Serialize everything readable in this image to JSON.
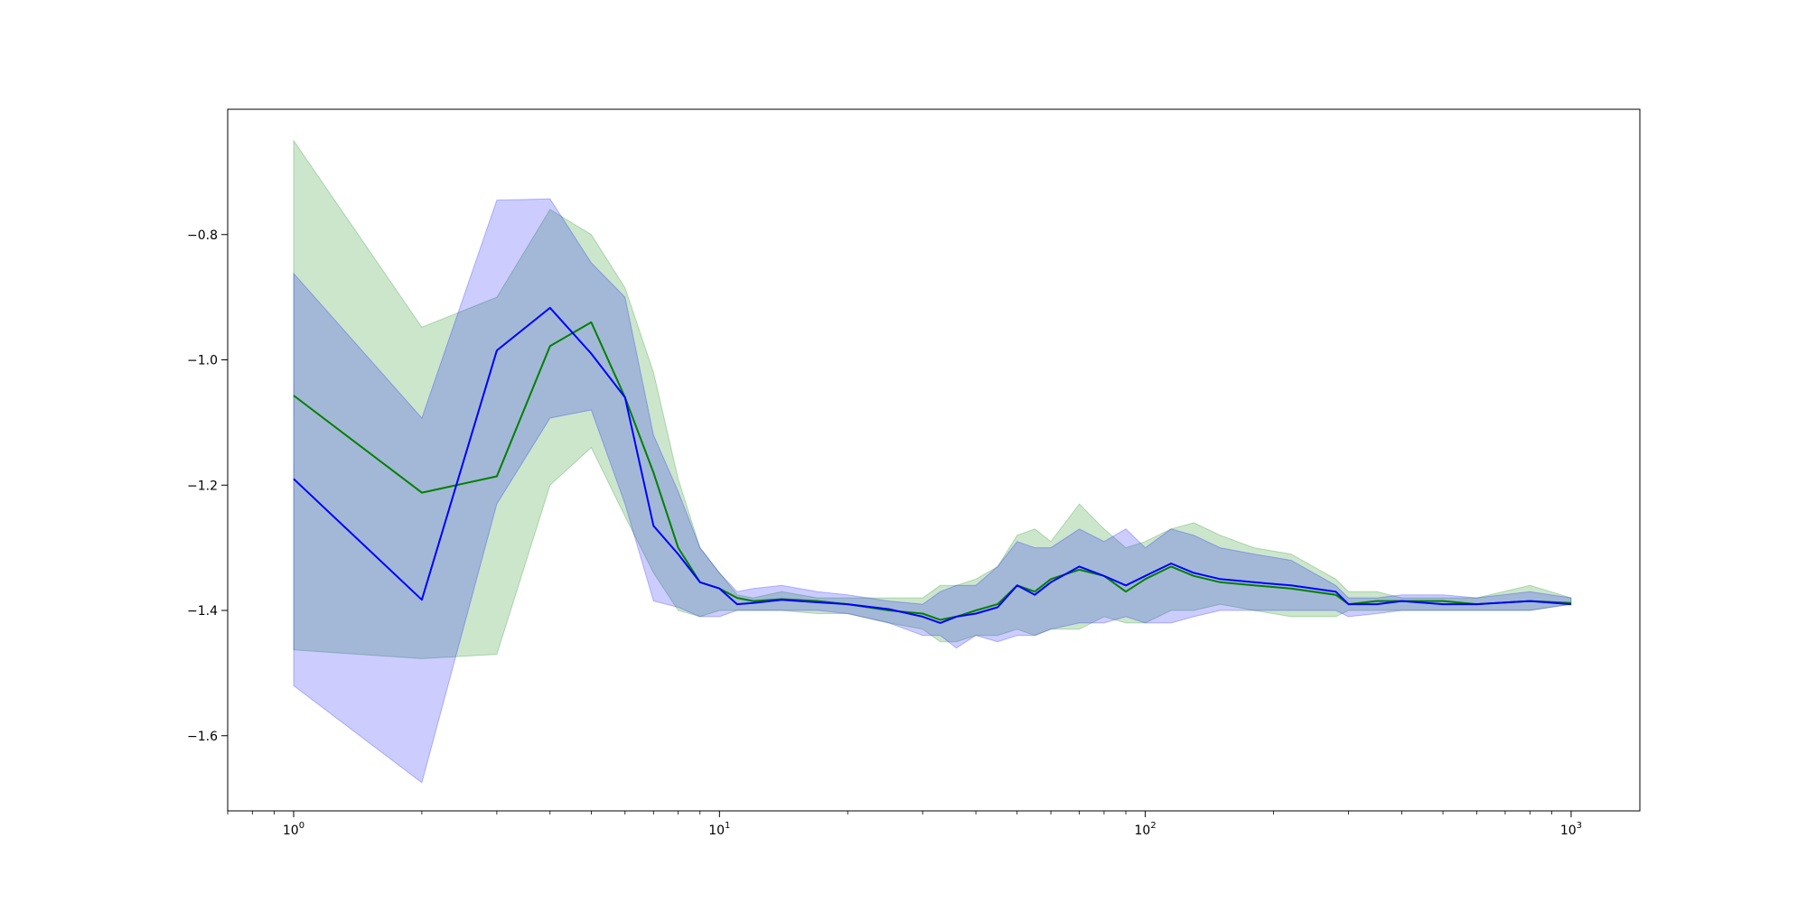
{
  "colors": {
    "green": "#008000",
    "blue": "#0000ff",
    "green_fill": "#008000",
    "blue_fill": "#0000ff",
    "axes": "#000000",
    "background": "#ffffff"
  },
  "chart_data": {
    "type": "line",
    "title": "",
    "xlabel": "",
    "ylabel": "",
    "xscale": "log",
    "xlim": [
      0.7,
      1450
    ],
    "ylim": [
      -1.72,
      -0.6
    ],
    "grid": false,
    "legend": "none",
    "xticks": [
      {
        "value": 1,
        "base": "10",
        "exp": "0"
      },
      {
        "value": 10,
        "base": "10",
        "exp": "1"
      },
      {
        "value": 100,
        "base": "10",
        "exp": "2"
      },
      {
        "value": 1000,
        "base": "10",
        "exp": "3"
      }
    ],
    "yticks": [
      {
        "value": -0.8,
        "label": "−0.8"
      },
      {
        "value": -1.0,
        "label": "−1.0"
      },
      {
        "value": -1.2,
        "label": "−1.2"
      },
      {
        "value": -1.4,
        "label": "−1.4"
      },
      {
        "value": -1.6,
        "label": "−1.6"
      }
    ],
    "series": [
      {
        "color": "#008000",
        "x": [
          1,
          2,
          3,
          4,
          5,
          6,
          7,
          8,
          9,
          10,
          11,
          12,
          14,
          17,
          20,
          25,
          30,
          33,
          36,
          40,
          45,
          50,
          55,
          60,
          70,
          80,
          90,
          100,
          115,
          130,
          150,
          180,
          220,
          280,
          300,
          350,
          400,
          500,
          600,
          800,
          1000
        ],
        "y": [
          -1.057,
          -1.212,
          -1.186,
          -0.978,
          -0.94,
          -1.06,
          -1.18,
          -1.3,
          -1.355,
          -1.365,
          -1.38,
          -1.385,
          -1.382,
          -1.385,
          -1.39,
          -1.4,
          -1.405,
          -1.415,
          -1.41,
          -1.4,
          -1.39,
          -1.36,
          -1.37,
          -1.35,
          -1.335,
          -1.345,
          -1.37,
          -1.35,
          -1.33,
          -1.345,
          -1.355,
          -1.36,
          -1.365,
          -1.375,
          -1.39,
          -1.385,
          -1.385,
          -1.385,
          -1.39,
          -1.385,
          -1.388
        ],
        "lower": [
          -1.463,
          -1.477,
          -1.47,
          -1.2,
          -1.14,
          -1.25,
          -1.34,
          -1.4,
          -1.41,
          -1.4,
          -1.4,
          -1.4,
          -1.4,
          -1.405,
          -1.405,
          -1.42,
          -1.43,
          -1.45,
          -1.45,
          -1.44,
          -1.44,
          -1.43,
          -1.44,
          -1.43,
          -1.43,
          -1.41,
          -1.42,
          -1.42,
          -1.4,
          -1.4,
          -1.39,
          -1.4,
          -1.41,
          -1.41,
          -1.4,
          -1.4,
          -1.4,
          -1.4,
          -1.4,
          -1.4,
          -1.39
        ],
        "upper": [
          -0.65,
          -0.948,
          -0.9,
          -0.76,
          -0.8,
          -0.885,
          -1.02,
          -1.19,
          -1.3,
          -1.34,
          -1.375,
          -1.38,
          -1.37,
          -1.38,
          -1.38,
          -1.38,
          -1.38,
          -1.36,
          -1.36,
          -1.35,
          -1.33,
          -1.28,
          -1.27,
          -1.29,
          -1.23,
          -1.27,
          -1.3,
          -1.29,
          -1.27,
          -1.26,
          -1.28,
          -1.3,
          -1.31,
          -1.35,
          -1.37,
          -1.37,
          -1.38,
          -1.38,
          -1.38,
          -1.36,
          -1.38
        ]
      },
      {
        "color": "#0000ff",
        "x": [
          1,
          2,
          3,
          4,
          5,
          6,
          7,
          8,
          9,
          10,
          11,
          12,
          14,
          17,
          20,
          25,
          30,
          33,
          36,
          40,
          45,
          50,
          55,
          60,
          70,
          80,
          90,
          100,
          115,
          130,
          150,
          180,
          220,
          280,
          300,
          350,
          400,
          500,
          600,
          800,
          1000
        ],
        "y": [
          -1.19,
          -1.383,
          -0.985,
          -0.917,
          -0.99,
          -1.06,
          -1.265,
          -1.31,
          -1.355,
          -1.365,
          -1.39,
          -1.388,
          -1.383,
          -1.387,
          -1.39,
          -1.398,
          -1.41,
          -1.42,
          -1.41,
          -1.405,
          -1.395,
          -1.36,
          -1.375,
          -1.355,
          -1.33,
          -1.345,
          -1.36,
          -1.345,
          -1.325,
          -1.34,
          -1.35,
          -1.355,
          -1.36,
          -1.37,
          -1.39,
          -1.39,
          -1.385,
          -1.39,
          -1.39,
          -1.385,
          -1.39
        ],
        "lower": [
          -1.52,
          -1.675,
          -1.23,
          -1.093,
          -1.08,
          -1.23,
          -1.385,
          -1.395,
          -1.41,
          -1.41,
          -1.4,
          -1.4,
          -1.4,
          -1.4,
          -1.405,
          -1.42,
          -1.44,
          -1.44,
          -1.46,
          -1.44,
          -1.45,
          -1.44,
          -1.44,
          -1.43,
          -1.42,
          -1.42,
          -1.41,
          -1.42,
          -1.42,
          -1.41,
          -1.4,
          -1.4,
          -1.4,
          -1.4,
          -1.41,
          -1.405,
          -1.4,
          -1.4,
          -1.4,
          -1.4,
          -1.39
        ],
        "upper": [
          -0.862,
          -1.093,
          -0.745,
          -0.743,
          -0.845,
          -0.9,
          -1.12,
          -1.21,
          -1.3,
          -1.34,
          -1.37,
          -1.365,
          -1.36,
          -1.37,
          -1.375,
          -1.385,
          -1.39,
          -1.37,
          -1.36,
          -1.36,
          -1.33,
          -1.29,
          -1.3,
          -1.3,
          -1.27,
          -1.29,
          -1.27,
          -1.3,
          -1.27,
          -1.28,
          -1.3,
          -1.31,
          -1.32,
          -1.36,
          -1.38,
          -1.38,
          -1.375,
          -1.375,
          -1.38,
          -1.37,
          -1.38
        ]
      }
    ]
  }
}
